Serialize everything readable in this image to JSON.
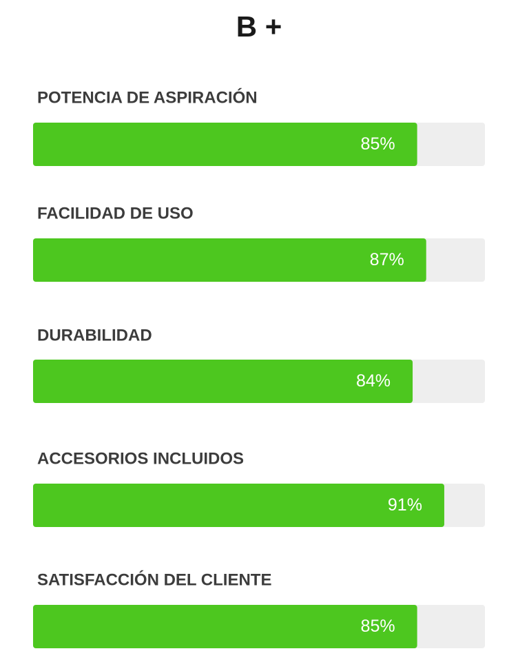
{
  "chart_data": {
    "type": "progress",
    "title": "B +",
    "categories": [
      "POTENCIA DE ASPIRACIÓN",
      "FACILIDAD DE USO",
      "DURABILIDAD",
      "ACCESORIOS INCLUIDOS",
      "SATISFACCIÓN DEL CLIENTE"
    ],
    "values": [
      85,
      87,
      84,
      91,
      85
    ],
    "value_labels": [
      "85%",
      "87%",
      "84%",
      "91%",
      "85%"
    ],
    "xlim": [
      0,
      100
    ],
    "color": "#4dc71f",
    "track_color": "#eeeeee"
  }
}
